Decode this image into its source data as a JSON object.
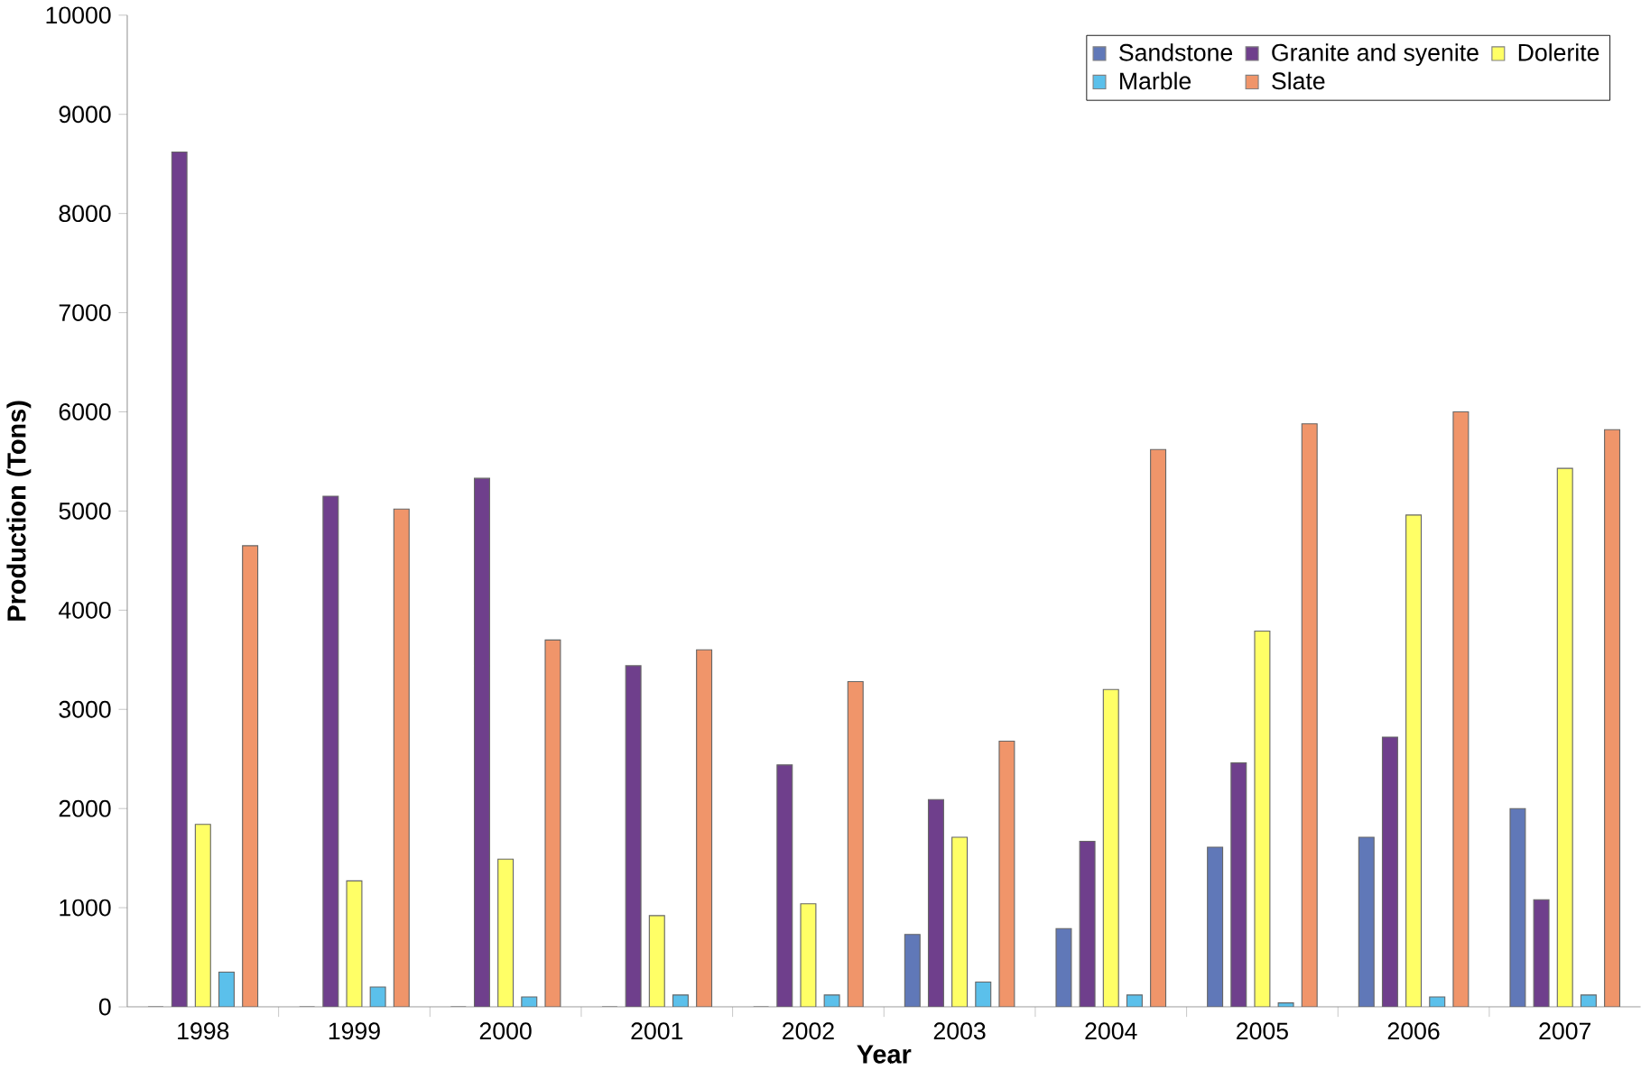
{
  "chart_data": {
    "type": "bar",
    "xlabel": "Year",
    "ylabel": "Production (Tons)",
    "categories": [
      "1998",
      "1999",
      "2000",
      "2001",
      "2002",
      "2003",
      "2004",
      "2005",
      "2006",
      "2007"
    ],
    "series": [
      {
        "name": "Sandstone",
        "color": "#6078b8",
        "values": [
          0,
          0,
          0,
          0,
          0,
          730,
          790,
          1610,
          1710,
          2000
        ]
      },
      {
        "name": "Granite and syenite",
        "color": "#6f3f8c",
        "values": [
          8620,
          5150,
          5330,
          3440,
          2440,
          2090,
          1670,
          2460,
          2720,
          1080
        ]
      },
      {
        "name": "Dolerite",
        "color": "#ffff66",
        "values": [
          1840,
          1270,
          1490,
          920,
          1040,
          1710,
          3200,
          3790,
          4960,
          5430
        ]
      },
      {
        "name": "Marble",
        "color": "#5bc0eb",
        "values": [
          350,
          200,
          100,
          120,
          120,
          250,
          120,
          40,
          100,
          120
        ]
      },
      {
        "name": "Slate",
        "color": "#f0956a",
        "values": [
          4650,
          5020,
          3700,
          3600,
          3280,
          2680,
          5620,
          5880,
          6000,
          5820
        ]
      }
    ],
    "ylim": [
      0,
      10000
    ],
    "yticks": [
      0,
      1000,
      2000,
      3000,
      4000,
      5000,
      6000,
      7000,
      8000,
      9000,
      10000
    ],
    "legend": "top right",
    "grid": false
  }
}
